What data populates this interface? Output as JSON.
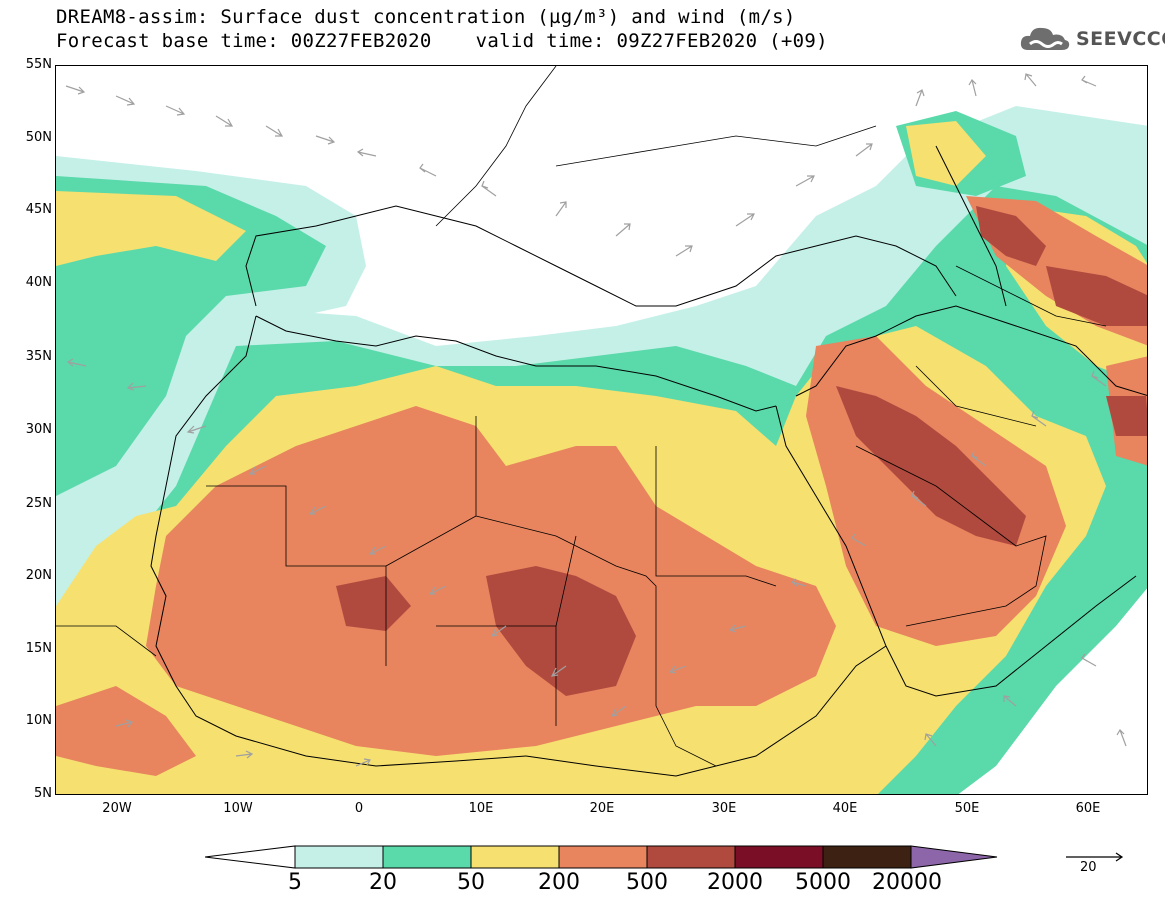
{
  "title": {
    "line1": "DREAM8-assim: Surface dust concentration (µg/m³) and wind (m/s)",
    "base_time": "Forecast base time: 00Z27FEB2020",
    "valid_time": "valid time: 09Z27FEB2020 (+09)"
  },
  "logo": {
    "text": "SEEVCCC",
    "icon": "cloud-logo-icon",
    "color": "#555555"
  },
  "axes": {
    "lat_labels": [
      "55N",
      "50N",
      "45N",
      "40N",
      "35N",
      "30N",
      "25N",
      "20N",
      "15N",
      "10N",
      "5N"
    ],
    "lon_labels": [
      "20W",
      "10W",
      "0",
      "10E",
      "20E",
      "30E",
      "40E",
      "50E",
      "60E"
    ],
    "lat_range": [
      5,
      55
    ],
    "lon_range": [
      -25,
      65
    ]
  },
  "colorbar": {
    "levels": [
      "5",
      "20",
      "50",
      "200",
      "500",
      "2000",
      "5000",
      "20000"
    ],
    "colors": [
      "#ffffff",
      "#c4f0e8",
      "#5ad9aa",
      "#f5e070",
      "#e8845e",
      "#b04a3e",
      "#7a0e26",
      "#3d2214",
      "#8c66a8"
    ]
  },
  "wind_reference": {
    "label": "20",
    "arrow_color": "#000000",
    "vector_color": "#a0a0a0"
  }
}
